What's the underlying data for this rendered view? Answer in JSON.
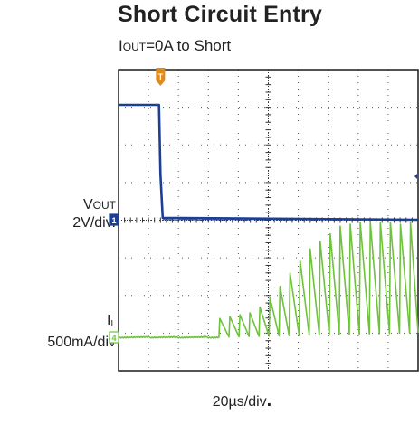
{
  "title": "Short Circuit Entry",
  "subtitle": {
    "prefix": "I",
    "subscript": "OUT",
    "suffix": "=0A to Short"
  },
  "channels": [
    {
      "marker": "1",
      "label_main": "V",
      "label_small": "OUT",
      "scale": "2V/div.",
      "color": "#1c3f94"
    },
    {
      "marker": "4",
      "label_main": "I",
      "label_sub": "L",
      "scale": "500mA/div",
      "color": "#6ec23c"
    }
  ],
  "trigger_marker": "T",
  "trigger_color": "#e08a1e",
  "timebase": {
    "value": "20µs/div",
    "dot": "."
  },
  "chart_data": {
    "type": "line",
    "title": "Short Circuit Entry",
    "grid": {
      "x_divisions": 10,
      "y_divisions": 8,
      "style": "dotted"
    },
    "x_unit": "µs",
    "xlim": [
      0,
      200
    ],
    "series": [
      {
        "name": "VOUT",
        "unit": "div",
        "points": [
          [
            0,
            3.05
          ],
          [
            27.0,
            3.05
          ],
          [
            28.0,
            1.2
          ],
          [
            29.5,
            0.05
          ],
          [
            200,
            0.0
          ]
        ]
      },
      {
        "name": "IL",
        "unit": "div",
        "sawtooth": {
          "baseline": 0.0,
          "baseline_end": 0.12,
          "first_spike_x": 67,
          "spike_spacing": 6.7,
          "peaks": [
            0.5,
            0.55,
            0.6,
            0.65,
            0.8,
            1.05,
            1.35,
            1.7,
            2.05,
            2.35,
            2.55,
            2.75,
            2.95,
            3.0,
            3.05,
            3.05,
            3.05,
            3.05,
            3.0,
            3.05
          ]
        }
      }
    ]
  }
}
